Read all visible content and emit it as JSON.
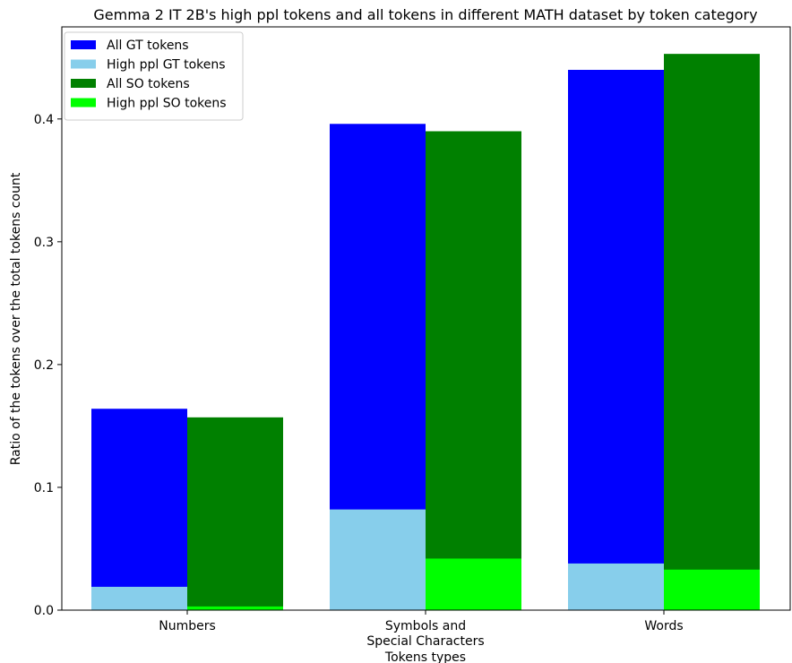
{
  "chart_data": {
    "type": "bar",
    "title": "Gemma 2 IT 2B's high ppl tokens and all tokens in different MATH dataset by token category",
    "xlabel": "Tokens types",
    "ylabel": "Ratio of the tokens over the total tokens count",
    "categories": [
      [
        "Numbers"
      ],
      [
        "Symbols and",
        "Special Characters"
      ],
      [
        "Words"
      ]
    ],
    "ylim": [
      0,
      0.475
    ],
    "yticks": [
      "0.0",
      "0.1",
      "0.2",
      "0.3",
      "0.4"
    ],
    "ytick_values": [
      0,
      0.1,
      0.2,
      0.3,
      0.4
    ],
    "grid": false,
    "legend_position": "top-left",
    "series": [
      {
        "name": "All GT tokens",
        "group": "GT",
        "layer": "back",
        "color": "#0000ff",
        "values": [
          0.164,
          0.396,
          0.44
        ]
      },
      {
        "name": "High ppl GT tokens",
        "group": "GT",
        "layer": "front",
        "color": "#87ceeb",
        "values": [
          0.019,
          0.082,
          0.038
        ]
      },
      {
        "name": "All SO tokens",
        "group": "SO",
        "layer": "back",
        "color": "#008000",
        "values": [
          0.157,
          0.39,
          0.453
        ]
      },
      {
        "name": "High ppl SO tokens",
        "group": "SO",
        "layer": "front",
        "color": "#00ff00",
        "values": [
          0.003,
          0.042,
          0.033
        ]
      }
    ]
  }
}
